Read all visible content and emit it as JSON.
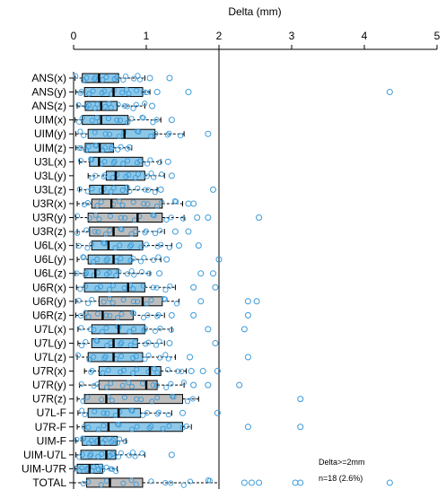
{
  "chart_data": {
    "type": "boxplot",
    "xlabel": "Delta (mm)",
    "xlim": [
      0,
      5
    ],
    "xticks": [
      "0",
      "1",
      "2",
      "3",
      "4",
      "5"
    ],
    "reference_line": 2,
    "legend_note_line1": "Delta>=2mm",
    "legend_note_line2": "n=18 (2.6%)",
    "colors": {
      "blue_box": "#8ec8e8",
      "gray_box": "#bdbdbd",
      "point": "#3a9ad9",
      "median": "#000000"
    },
    "categories": [
      "ANS(x)",
      "ANS(y)",
      "ANS(z)",
      "UIM(x)",
      "UIM(y)",
      "UIM(z)",
      "U3L(x)",
      "U3L(y)",
      "U3L(z)",
      "U3R(x)",
      "U3R(y)",
      "U3R(z)",
      "U6L(x)",
      "U6L(y)",
      "U6L(z)",
      "U6R(x)",
      "U6R(y)",
      "U6R(z)",
      "U7L(x)",
      "U7L(y)",
      "U7L(z)",
      "U7R(x)",
      "U7R(y)",
      "U7R(z)",
      "U7L-F",
      "U7R-F",
      "UIM-F",
      "UIM-U7L",
      "UIM-U7R",
      "TOTAL"
    ],
    "series": [
      {
        "box_color": "blue",
        "min": 0.02,
        "q1": 0.12,
        "median": 0.35,
        "q3": 0.62,
        "max": 0.98,
        "outliers": [
          1.05,
          1.32
        ]
      },
      {
        "box_color": "blue",
        "min": 0.03,
        "q1": 0.15,
        "median": 0.55,
        "q3": 0.95,
        "max": 1.05,
        "outliers": [
          1.15,
          1.58,
          4.35
        ]
      },
      {
        "box_color": "blue",
        "min": 0.05,
        "q1": 0.16,
        "median": 0.38,
        "q3": 0.6,
        "max": 0.98,
        "outliers": [
          1.08
        ]
      },
      {
        "box_color": "blue",
        "min": 0.02,
        "q1": 0.12,
        "median": 0.38,
        "q3": 0.75,
        "max": 1.2,
        "outliers": [
          1.35
        ]
      },
      {
        "box_color": "blue",
        "min": 0.03,
        "q1": 0.2,
        "median": 0.7,
        "q3": 1.12,
        "max": 1.52,
        "outliers": [
          1.85
        ]
      },
      {
        "box_color": "blue",
        "min": 0.03,
        "q1": 0.16,
        "median": 0.36,
        "q3": 0.55,
        "max": 0.8,
        "outliers": []
      },
      {
        "box_color": "blue",
        "min": 0.08,
        "q1": 0.22,
        "median": 0.35,
        "q3": 0.95,
        "max": 1.2,
        "outliers": [
          1.3
        ]
      },
      {
        "box_color": "blue",
        "min": 0.2,
        "q1": 0.45,
        "median": 0.58,
        "q3": 0.98,
        "max": 1.25,
        "outliers": [
          1.35
        ]
      },
      {
        "box_color": "blue",
        "min": 0.08,
        "q1": 0.22,
        "median": 0.4,
        "q3": 0.75,
        "max": 1.15,
        "outliers": [
          1.2,
          1.92
        ]
      },
      {
        "box_color": "gray",
        "min": 0.05,
        "q1": 0.25,
        "median": 0.52,
        "q3": 1.22,
        "max": 1.5,
        "outliers": [
          1.58,
          1.65
        ]
      },
      {
        "box_color": "gray",
        "min": 0.03,
        "q1": 0.2,
        "median": 0.88,
        "q3": 1.22,
        "max": 1.52,
        "outliers": [
          1.7,
          1.85,
          2.55
        ]
      },
      {
        "box_color": "gray",
        "min": 0.05,
        "q1": 0.22,
        "median": 0.55,
        "q3": 0.88,
        "max": 1.25,
        "outliers": [
          1.4,
          1.58
        ]
      },
      {
        "box_color": "blue",
        "min": 0.04,
        "q1": 0.25,
        "median": 0.48,
        "q3": 0.95,
        "max": 1.35,
        "outliers": [
          1.45,
          1.72
        ]
      },
      {
        "box_color": "blue",
        "min": 0.05,
        "q1": 0.2,
        "median": 0.55,
        "q3": 0.8,
        "max": 1.2,
        "outliers": [
          1.28,
          2.0
        ]
      },
      {
        "box_color": "blue",
        "min": 0.02,
        "q1": 0.15,
        "median": 0.3,
        "q3": 0.62,
        "max": 1.05,
        "outliers": [
          1.18,
          1.75,
          1.92
        ]
      },
      {
        "box_color": "blue",
        "min": 0.04,
        "q1": 0.15,
        "median": 0.75,
        "q3": 0.98,
        "max": 1.4,
        "outliers": [
          1.65,
          1.95
        ]
      },
      {
        "box_color": "gray",
        "min": 0.03,
        "q1": 0.35,
        "median": 0.95,
        "q3": 1.22,
        "max": 1.45,
        "outliers": [
          1.75,
          2.4,
          2.52
        ]
      },
      {
        "box_color": "gray",
        "min": 0.03,
        "q1": 0.15,
        "median": 0.4,
        "q3": 0.82,
        "max": 1.25,
        "outliers": [
          1.35,
          1.65,
          2.4
        ]
      },
      {
        "box_color": "blue",
        "min": 0.06,
        "q1": 0.25,
        "median": 0.62,
        "q3": 0.98,
        "max": 1.35,
        "outliers": [
          1.85,
          2.35
        ]
      },
      {
        "box_color": "blue",
        "min": 0.06,
        "q1": 0.25,
        "median": 0.55,
        "q3": 0.88,
        "max": 1.25,
        "outliers": [
          1.32,
          1.95
        ]
      },
      {
        "box_color": "blue",
        "min": 0.05,
        "q1": 0.2,
        "median": 0.55,
        "q3": 0.95,
        "max": 1.4,
        "outliers": [
          1.6,
          2.4
        ]
      },
      {
        "box_color": "blue",
        "min": 0.15,
        "q1": 0.35,
        "median": 1.05,
        "q3": 1.2,
        "max": 1.55,
        "outliers": [
          1.62,
          1.78,
          1.98
        ]
      },
      {
        "box_color": "gray",
        "min": 0.08,
        "q1": 0.35,
        "median": 1.0,
        "q3": 1.15,
        "max": 1.52,
        "outliers": [
          1.65,
          1.85,
          2.28
        ]
      },
      {
        "box_color": "gray",
        "min": 0.05,
        "q1": 0.15,
        "median": 0.45,
        "q3": 1.5,
        "max": 1.72,
        "outliers": [
          3.12
        ]
      },
      {
        "box_color": "blue",
        "min": 0.06,
        "q1": 0.2,
        "median": 0.62,
        "q3": 0.92,
        "max": 1.35,
        "outliers": [
          1.5,
          1.98
        ]
      },
      {
        "box_color": "blue",
        "min": 0.05,
        "q1": 0.15,
        "median": 0.48,
        "q3": 1.5,
        "max": 1.62,
        "outliers": [
          2.4,
          3.12
        ]
      },
      {
        "box_color": "blue",
        "min": 0.03,
        "q1": 0.12,
        "median": 0.35,
        "q3": 0.6,
        "max": 0.72,
        "outliers": []
      },
      {
        "box_color": "blue",
        "min": 0.03,
        "q1": 0.1,
        "median": 0.45,
        "q3": 0.58,
        "max": 0.98,
        "outliers": [
          1.35
        ]
      },
      {
        "box_color": "blue",
        "min": 0.02,
        "q1": 0.05,
        "median": 0.22,
        "q3": 0.4,
        "max": 0.6,
        "outliers": []
      },
      {
        "box_color": "gray",
        "min": 0.0,
        "q1": 0.18,
        "median": 0.5,
        "q3": 0.95,
        "max": 2.0,
        "outliers": [
          2.35,
          2.45,
          2.55,
          3.05,
          3.12,
          4.35
        ]
      }
    ]
  }
}
